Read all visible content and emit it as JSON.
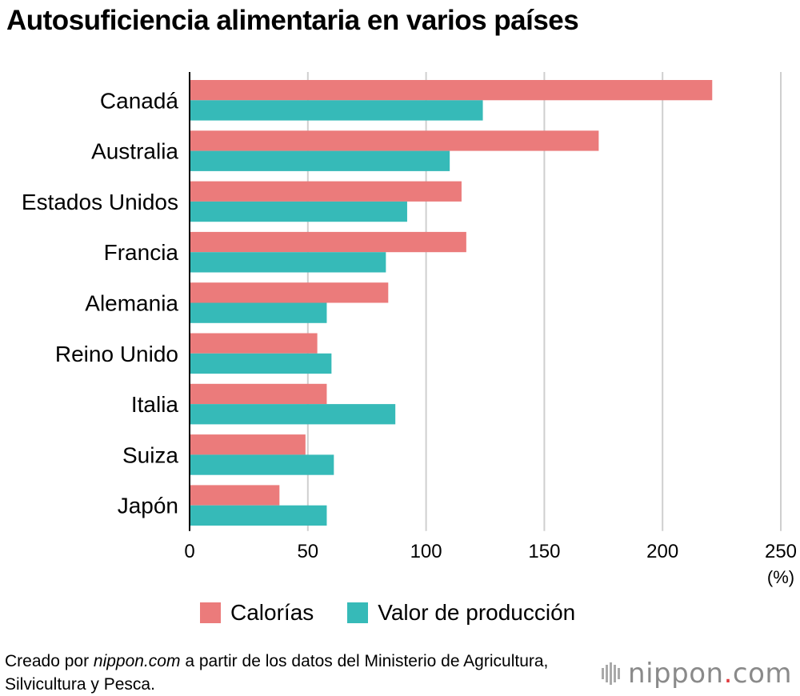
{
  "title": "Autosuficiencia alimentaria en varios países",
  "chart_data": {
    "type": "bar",
    "orientation": "horizontal",
    "categories": [
      "Canadá",
      "Australia",
      "Estados Unidos",
      "Francia",
      "Alemania",
      "Reino Unido",
      "Italia",
      "Suiza",
      "Japón"
    ],
    "series": [
      {
        "name": "Calorías",
        "color": "#eb7b7b",
        "values": [
          221,
          173,
          115,
          117,
          84,
          54,
          58,
          49,
          38
        ]
      },
      {
        "name": "Valor de producción",
        "color": "#36bab8",
        "values": [
          124,
          110,
          92,
          83,
          58,
          60,
          87,
          61,
          58
        ]
      }
    ],
    "xlim": [
      0,
      250
    ],
    "xticks": [
      0,
      50,
      100,
      150,
      200,
      250
    ],
    "xunit": "(%)",
    "grid": true,
    "legend_position": "bottom"
  },
  "source": {
    "prefix": "Creado por ",
    "site": "nippon.com",
    "suffix": " a partir de los datos del Ministerio de Agricultura, Silvicultura y Pesca."
  },
  "logo": {
    "name": "nippon",
    "dot": ".",
    "tld": "com"
  }
}
